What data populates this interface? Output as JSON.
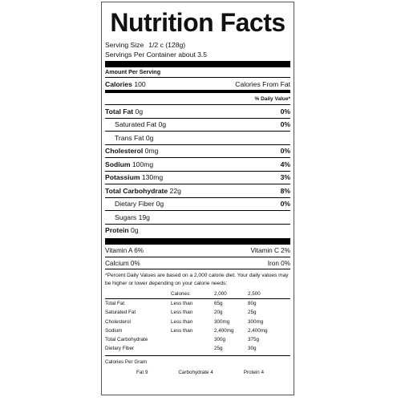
{
  "title": "Nutrition Facts",
  "serving_size_label": "Serving Size",
  "serving_size_value": "1/2 c (128g)",
  "servings_per_container": "Servings Per Container about 3.5",
  "amount_per_serving": "Amount Per Serving",
  "calories_label": "Calories",
  "calories_value": "100",
  "calories_from_fat": "Calories From Fat",
  "daily_value_header": "% Daily Value*",
  "nutrients": [
    {
      "name": "Total Fat",
      "amount": "0g",
      "dv": "0%",
      "bold": true
    },
    {
      "name": "Saturated Fat",
      "amount": "0g",
      "dv": "0%",
      "bold": false
    },
    {
      "name": "Trans Fat",
      "amount": "0g",
      "dv": "",
      "bold": false
    },
    {
      "name": "Cholesterol",
      "amount": "0mg",
      "dv": "0%",
      "bold": true
    },
    {
      "name": "Sodium",
      "amount": "100mg",
      "dv": "4%",
      "bold": true
    },
    {
      "name": "Potassium",
      "amount": "130mg",
      "dv": "3%",
      "bold": true
    },
    {
      "name": "Total Carbohydrate",
      "amount": "22g",
      "dv": "8%",
      "bold": true
    },
    {
      "name": "Dietary Fiber",
      "amount": "0g",
      "dv": "0%",
      "bold": false
    },
    {
      "name": "Sugars",
      "amount": "19g",
      "dv": "",
      "bold": false
    },
    {
      "name": "Protein",
      "amount": "0g",
      "dv": "",
      "bold": true
    }
  ],
  "vitamins": [
    {
      "left": "Vitamin A 6%",
      "right": "Vitamin C 2%"
    },
    {
      "left": "Calcium 0%",
      "right": "Iron 0%"
    }
  ],
  "footnote": "*Percent Daily Values are based on a 2,000 calorie diet. Your daily values may be higher or lower depending on your calorie needs:",
  "reference": {
    "header": [
      "",
      "Calories:",
      "2,000",
      "2,500"
    ],
    "rows": [
      [
        "Total Fat",
        "Less than",
        "65g",
        "80g"
      ],
      [
        "Saturated Fat",
        "Less than",
        "20g",
        "25g"
      ],
      [
        "Cholesterol",
        "Less than",
        "300mg",
        "300mg"
      ],
      [
        "Sodium",
        "Less than",
        "2,400mg",
        "2,400mg"
      ],
      [
        "Total Carbohydrate",
        "",
        "300g",
        "375g"
      ],
      [
        "Dietary Fiber",
        "",
        "25g",
        "30g"
      ]
    ]
  },
  "calories_per_gram_label": "Calories Per Gram",
  "calories_per_gram": [
    "Fat 9",
    "Carbohydrate 4",
    "Protein 4"
  ]
}
